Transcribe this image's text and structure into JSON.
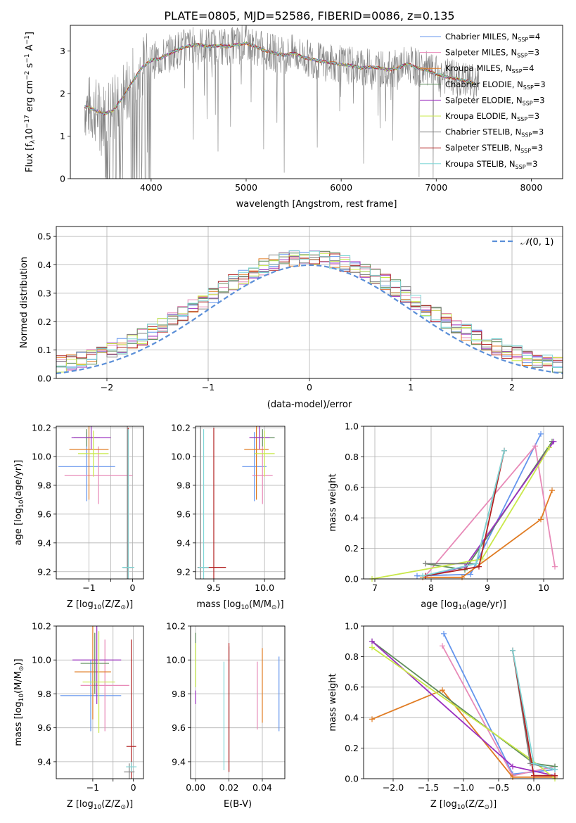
{
  "figure_title": "PLATE=0805, MJD=52586, FIBERID=0086, z=0.135",
  "colors": {
    "Chabrier MILES": "#6495ed",
    "Salpeter MILES": "#e88ab8",
    "Kroupa MILES": "#e07b22",
    "Chabrier ELODIE": "#5e8c5a",
    "Salpeter ELODIE": "#9b30c0",
    "Kroupa ELODIE": "#c9e84a",
    "Chabrier STELIB": "#7f7f7f",
    "Salpeter STELIB": "#b22222",
    "Kroupa STELIB": "#7fd6d6",
    "normal_curve": "#5b8fd8",
    "data_spectrum": "#808080"
  },
  "chart_data": [
    {
      "id": "spectrum",
      "type": "line",
      "xlabel": "wavelength [Angstrom, rest frame]",
      "ylabel_parts": [
        "Flux [f",
        "λ",
        "10",
        "−17",
        " erg cm",
        "−2",
        " s",
        "−1",
        " A",
        "−1",
        "]"
      ],
      "xlim": [
        3150,
        8330
      ],
      "ylim": [
        0,
        3.6
      ],
      "xticks": [
        4000,
        5000,
        6000,
        7000,
        8000
      ],
      "yticks": [
        0,
        1,
        2,
        3
      ],
      "grid": false,
      "legend_placement": "right",
      "legend": [
        {
          "name": "Chabrier MILES",
          "n": "4"
        },
        {
          "name": "Salpeter MILES",
          "n": "3"
        },
        {
          "name": "Kroupa MILES",
          "n": "4"
        },
        {
          "name": "Chabrier ELODIE",
          "n": "3"
        },
        {
          "name": "Salpeter ELODIE",
          "n": "3"
        },
        {
          "name": "Kroupa ELODIE",
          "n": "3"
        },
        {
          "name": "Chabrier STELIB",
          "n": "3"
        },
        {
          "name": "Salpeter STELIB",
          "n": "3"
        },
        {
          "name": "Kroupa STELIB",
          "n": "3"
        }
      ],
      "legend_n_prefix": "N",
      "legend_n_sub": "SSP",
      "model_continuum": {
        "x": [
          3300,
          3400,
          3500,
          3600,
          3700,
          3800,
          3900,
          4000,
          4100,
          4200,
          4300,
          4400,
          4500,
          4600,
          4700,
          4800,
          4900,
          5000,
          5100,
          5200,
          5300,
          5400,
          5500,
          5600,
          5700,
          5800,
          5900,
          6000,
          6100,
          6200,
          6300,
          6400,
          6500,
          6600,
          6700,
          6800,
          6900,
          7000,
          7100,
          7200,
          7300,
          7400
        ],
        "y": [
          1.7,
          1.62,
          1.52,
          1.6,
          1.9,
          2.25,
          2.6,
          2.78,
          2.82,
          2.95,
          3.05,
          3.12,
          3.15,
          3.1,
          3.12,
          3.1,
          3.15,
          3.18,
          3.1,
          3.0,
          2.95,
          2.9,
          2.95,
          2.85,
          2.8,
          2.75,
          2.72,
          2.68,
          2.66,
          2.6,
          2.62,
          2.6,
          2.55,
          2.6,
          2.7,
          2.6,
          2.55,
          2.45,
          2.4,
          2.35,
          2.3,
          2.25
        ]
      }
    },
    {
      "id": "residuals",
      "type": "step",
      "xlabel": "(data-model)/error",
      "ylabel": "Normed distribution",
      "xlim": [
        -2.5,
        2.5
      ],
      "ylim": [
        0,
        0.535
      ],
      "xticks": [
        -2,
        -1,
        0,
        1,
        2
      ],
      "xtick_labels": [
        "−2",
        "−1",
        "0",
        "1",
        "2"
      ],
      "yticks": [
        0,
        0.1,
        0.2,
        0.3,
        0.4,
        0.5
      ],
      "ytick_labels": [
        "0.0",
        "0.1",
        "0.2",
        "0.3",
        "0.4",
        "0.5"
      ],
      "grid": true,
      "legend_placement": "top-right",
      "normal_label_parts": [
        "𝒩",
        "(0, 1)"
      ],
      "bins": {
        "start": -2.5,
        "width": 0.1,
        "count": 50
      }
    },
    {
      "id": "age-vs-Z",
      "type": "errorbar",
      "xlabel_parts": [
        "Z [log",
        "10",
        "(Z/Z",
        "⊙",
        ")]"
      ],
      "ylabel_parts": [
        "age  [log",
        "10",
        "(age/yr)]"
      ],
      "xlim": [
        -1.75,
        0.25
      ],
      "ylim": [
        9.15,
        10.21
      ],
      "xticks": [
        -1,
        -0.5,
        0
      ],
      "xtick_labels": [
        "−1",
        "",
        "0"
      ],
      "yticks": [
        9.2,
        9.4,
        9.6,
        9.8,
        10.0,
        10.2
      ],
      "ytick_labels": [
        "9.2",
        "9.4",
        "9.6",
        "9.8",
        "10.0",
        "10.2"
      ],
      "grid": true,
      "points": [
        {
          "model": "Chabrier MILES",
          "x": -1.05,
          "xerr": 0.65,
          "y": 9.93,
          "yerr": 0.24
        },
        {
          "model": "Salpeter MILES",
          "x": -0.78,
          "xerr": 0.78,
          "y": 9.87,
          "yerr": 0.2
        },
        {
          "model": "Kroupa MILES",
          "x": -1.0,
          "xerr": 0.45,
          "y": 10.05,
          "yerr": 0.35
        },
        {
          "model": "Chabrier ELODIE",
          "x": -1.05,
          "xerr": 0.3,
          "y": 10.13,
          "yerr": 0.06
        },
        {
          "model": "Salpeter ELODIE",
          "x": -0.95,
          "xerr": 0.45,
          "y": 10.13,
          "yerr": 0.08
        },
        {
          "model": "Kroupa ELODIE",
          "x": -0.9,
          "xerr": 0.35,
          "y": 10.02,
          "yerr": 0.16
        },
        {
          "model": "Chabrier STELIB",
          "x": -0.12,
          "xerr": 0.1,
          "y": 9.23,
          "yerr": 0.98
        },
        {
          "model": "Salpeter STELIB",
          "x": -0.1,
          "xerr": 0.12,
          "y": 9.23,
          "yerr": 0.97
        },
        {
          "model": "Kroupa STELIB",
          "x": -0.1,
          "xerr": 0.14,
          "y": 9.23,
          "yerr": 0.96
        }
      ]
    },
    {
      "id": "age-vs-mass",
      "type": "errorbar",
      "xlabel_parts": [
        "mass [log",
        "10",
        "(M/M",
        "⊙",
        ")]"
      ],
      "ylabel": "",
      "xlim": [
        9.32,
        10.2
      ],
      "ylim": [
        9.15,
        10.21
      ],
      "xticks": [
        9.5,
        10.0
      ],
      "xtick_labels": [
        "9.5",
        "10.0"
      ],
      "yticks": [
        9.2,
        9.4,
        9.6,
        9.8,
        10.0,
        10.2
      ],
      "ytick_labels": [
        "9.2",
        "9.4",
        "9.6",
        "9.8",
        "10.0",
        "10.2"
      ],
      "grid": true,
      "points": [
        {
          "model": "Chabrier MILES",
          "x": 9.9,
          "xerr": 0.12,
          "y": 9.93,
          "yerr": 0.24
        },
        {
          "model": "Salpeter MILES",
          "x": 9.98,
          "xerr": 0.1,
          "y": 9.87,
          "yerr": 0.2
        },
        {
          "model": "Kroupa MILES",
          "x": 9.92,
          "xerr": 0.12,
          "y": 10.05,
          "yerr": 0.35
        },
        {
          "model": "Chabrier ELODIE",
          "x": 9.98,
          "xerr": 0.12,
          "y": 10.13,
          "yerr": 0.06
        },
        {
          "model": "Salpeter ELODIE",
          "x": 9.95,
          "xerr": 0.1,
          "y": 10.13,
          "yerr": 0.08
        },
        {
          "model": "Kroupa ELODIE",
          "x": 10.0,
          "xerr": 0.1,
          "y": 10.02,
          "yerr": 0.16
        },
        {
          "model": "Chabrier STELIB",
          "x": 9.37,
          "xerr": 0.03,
          "y": 9.23,
          "yerr": 0.98
        },
        {
          "model": "Salpeter STELIB",
          "x": 9.5,
          "xerr": 0.12,
          "y": 9.23,
          "yerr": 0.97
        },
        {
          "model": "Kroupa STELIB",
          "x": 9.4,
          "xerr": 0.05,
          "y": 9.23,
          "yerr": 0.96
        }
      ]
    },
    {
      "id": "mass-weight-vs-age",
      "type": "line",
      "xlabel_parts": [
        "age  [log",
        "10",
        "(age/yr)]"
      ],
      "ylabel": "mass weight",
      "xlim": [
        6.8,
        10.35
      ],
      "ylim": [
        0,
        1.0
      ],
      "xticks": [
        7,
        8,
        9,
        10
      ],
      "xtick_labels": [
        "7",
        "8",
        "9",
        "10"
      ],
      "yticks": [
        0,
        0.2,
        0.4,
        0.6,
        0.8,
        1.0
      ],
      "ytick_labels": [
        "0.0",
        "0.2",
        "0.4",
        "0.6",
        "0.8",
        "1.0"
      ],
      "grid": true,
      "series": [
        {
          "model": "Chabrier MILES",
          "x": [
            7.75,
            8.7,
            9.95
          ],
          "y": [
            0.02,
            0.03,
            0.95
          ]
        },
        {
          "model": "Salpeter MILES",
          "x": [
            7.9,
            9.85,
            10.2
          ],
          "y": [
            0.02,
            0.87,
            0.08
          ]
        },
        {
          "model": "Kroupa MILES",
          "x": [
            7.85,
            8.55,
            9.95,
            10.15
          ],
          "y": [
            0.01,
            0.01,
            0.39,
            0.58
          ]
        },
        {
          "model": "Chabrier ELODIE",
          "x": [
            7.9,
            8.6,
            10.15
          ],
          "y": [
            0.1,
            0.06,
            0.9
          ]
        },
        {
          "model": "Salpeter ELODIE",
          "x": [
            7.9,
            8.6,
            10.18
          ],
          "y": [
            0.02,
            0.08,
            0.9
          ]
        },
        {
          "model": "Kroupa ELODIE",
          "x": [
            6.95,
            8.9,
            10.1
          ],
          "y": [
            0.0,
            0.13,
            0.86
          ]
        },
        {
          "model": "Chabrier STELIB",
          "x": [
            7.9,
            8.8,
            9.3
          ],
          "y": [
            0.1,
            0.1,
            0.84
          ]
        },
        {
          "model": "Salpeter STELIB",
          "x": [
            7.9,
            8.85,
            9.3
          ],
          "y": [
            0.02,
            0.08,
            0.84
          ]
        },
        {
          "model": "Kroupa STELIB",
          "x": [
            7.85,
            8.8,
            9.3
          ],
          "y": [
            0.02,
            0.1,
            0.84
          ]
        }
      ]
    },
    {
      "id": "mass-vs-Z",
      "type": "errorbar",
      "xlabel_parts": [
        "Z [log",
        "10",
        "(Z/Z",
        "⊙",
        ")]"
      ],
      "ylabel_parts": [
        "mass [log",
        "10",
        "(M/M",
        "⊙",
        ")]"
      ],
      "xlim": [
        -1.9,
        0.25
      ],
      "ylim": [
        9.3,
        10.2
      ],
      "xticks": [
        -1,
        -0.5,
        0
      ],
      "xtick_labels": [
        "−1",
        "",
        "0"
      ],
      "yticks": [
        9.4,
        9.6,
        9.8,
        10.0,
        10.2
      ],
      "ytick_labels": [
        "9.4",
        "9.6",
        "9.8",
        "10.0",
        "10.2"
      ],
      "grid": true,
      "points": [
        {
          "model": "Chabrier MILES",
          "x": -1.05,
          "xerr": 0.75,
          "y": 9.79,
          "yerr": 0.21
        },
        {
          "model": "Salpeter MILES",
          "x": -0.7,
          "xerr": 0.6,
          "y": 9.85,
          "yerr": 0.27
        },
        {
          "model": "Kroupa MILES",
          "x": -1.0,
          "xerr": 0.45,
          "y": 9.93,
          "yerr": 0.28
        },
        {
          "model": "Chabrier ELODIE",
          "x": -0.95,
          "xerr": 0.35,
          "y": 9.98,
          "yerr": 0.18
        },
        {
          "model": "Salpeter ELODIE",
          "x": -0.9,
          "xerr": 0.6,
          "y": 10.0,
          "yerr": 0.26
        },
        {
          "model": "Kroupa ELODIE",
          "x": -0.85,
          "xerr": 0.4,
          "y": 9.87,
          "yerr": 0.3
        },
        {
          "model": "Chabrier STELIB",
          "x": -0.1,
          "xerr": 0.13,
          "y": 9.34,
          "yerr": 0.05
        },
        {
          "model": "Salpeter STELIB",
          "x": -0.05,
          "xerr": 0.12,
          "y": 9.49,
          "yerr": 0.63
        },
        {
          "model": "Kroupa STELIB",
          "x": -0.05,
          "xerr": 0.13,
          "y": 9.37,
          "yerr": 0.03
        }
      ]
    },
    {
      "id": "mass-vs-EBV",
      "type": "errorbar",
      "xlabel": "E(B-V)",
      "ylabel": "",
      "xlim": [
        -0.003,
        0.0535
      ],
      "ylim": [
        9.3,
        10.2
      ],
      "xticks": [
        0.0,
        0.02,
        0.04
      ],
      "xtick_labels": [
        "0.00",
        "0.02",
        "0.04"
      ],
      "yticks": [
        9.4,
        9.6,
        9.8,
        10.0,
        10.2
      ],
      "ytick_labels": [
        "9.4",
        "9.6",
        "9.8",
        "10.0",
        "10.2"
      ],
      "grid": true,
      "points": [
        {
          "model": "Chabrier MILES",
          "x": 0.05,
          "xerr": 0,
          "y": 9.8,
          "yerr": 0.22
        },
        {
          "model": "Salpeter MILES",
          "x": 0.037,
          "xerr": 0,
          "y": 9.79,
          "yerr": 0.2
        },
        {
          "model": "Kroupa MILES",
          "x": 0.04,
          "xerr": 0,
          "y": 9.85,
          "yerr": 0.22
        },
        {
          "model": "Chabrier ELODIE",
          "x": 0.0,
          "xerr": 0,
          "y": 10.0,
          "yerr": 0.16
        },
        {
          "model": "Salpeter ELODIE",
          "x": 0.0,
          "xerr": 0,
          "y": 9.78,
          "yerr": 0.04
        },
        {
          "model": "Kroupa ELODIE",
          "x": 0.0,
          "xerr": 0,
          "y": 9.97,
          "yerr": 0.13
        },
        {
          "model": "Chabrier STELIB",
          "x": 0.02,
          "xerr": 0,
          "y": 9.71,
          "yerr": 0.37
        },
        {
          "model": "Salpeter STELIB",
          "x": 0.02,
          "xerr": 0,
          "y": 9.72,
          "yerr": 0.38
        },
        {
          "model": "Kroupa STELIB",
          "x": 0.017,
          "xerr": 0,
          "y": 9.67,
          "yerr": 0.32
        }
      ]
    },
    {
      "id": "mass-weight-vs-Z",
      "type": "line",
      "xlabel_parts": [
        "Z [log",
        "10",
        "(Z/Z",
        "⊙",
        ")]"
      ],
      "ylabel": "mass weight",
      "xlim": [
        -2.42,
        0.42
      ],
      "ylim": [
        0,
        1.0
      ],
      "xticks": [
        -2.0,
        -1.5,
        -1.0,
        -0.5,
        0.0
      ],
      "xtick_labels": [
        "−2.0",
        "−1.5",
        "−1.0",
        "−0.5",
        "0.0"
      ],
      "yticks": [
        0,
        0.2,
        0.4,
        0.6,
        0.8,
        1.0
      ],
      "ytick_labels": [
        "0.0",
        "0.2",
        "0.4",
        "0.6",
        "0.8",
        "1.0"
      ],
      "grid": true,
      "series": [
        {
          "model": "Chabrier MILES",
          "x": [
            -1.28,
            -0.3,
            0.3
          ],
          "y": [
            0.95,
            0.03,
            0.06
          ]
        },
        {
          "model": "Salpeter MILES",
          "x": [
            -1.3,
            -0.3,
            0.3
          ],
          "y": [
            0.87,
            0.02,
            0.08
          ]
        },
        {
          "model": "Kroupa MILES",
          "x": [
            -2.3,
            -1.3,
            -0.3,
            0.3
          ],
          "y": [
            0.39,
            0.58,
            0.01,
            0.01
          ]
        },
        {
          "model": "Chabrier ELODIE",
          "x": [
            -2.3,
            0.0,
            0.3
          ],
          "y": [
            0.9,
            0.1,
            0.08
          ]
        },
        {
          "model": "Salpeter ELODIE",
          "x": [
            -2.3,
            -0.3,
            0.3
          ],
          "y": [
            0.9,
            0.08,
            0.02
          ]
        },
        {
          "model": "Kroupa ELODIE",
          "x": [
            -2.3,
            -0.05,
            0.3
          ],
          "y": [
            0.86,
            0.13,
            0.0
          ]
        },
        {
          "model": "Chabrier STELIB",
          "x": [
            -0.3,
            -0.05,
            0.3
          ],
          "y": [
            0.84,
            0.1,
            0.06
          ]
        },
        {
          "model": "Salpeter STELIB",
          "x": [
            -0.3,
            0.0,
            0.3
          ],
          "y": [
            0.84,
            0.02,
            0.02
          ]
        },
        {
          "model": "Kroupa STELIB",
          "x": [
            -0.3,
            0.0,
            0.3
          ],
          "y": [
            0.84,
            0.1,
            0.06
          ]
        }
      ]
    }
  ]
}
